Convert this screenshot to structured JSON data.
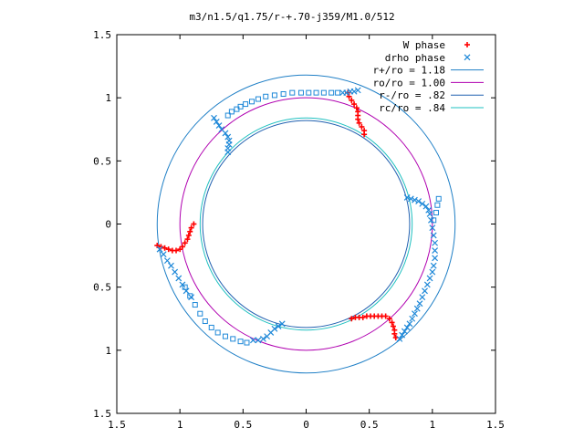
{
  "chart_data": {
    "type": "scatter",
    "title": "m3/n1.5/q1.75/r-+.70-j359/M1.0/512",
    "xlabel": "",
    "ylabel": "",
    "xlim": [
      -1.5,
      1.5
    ],
    "ylim": [
      -1.5,
      1.5
    ],
    "x_ticks": [
      {
        "value": -1.5,
        "label": "1.5"
      },
      {
        "value": -1.0,
        "label": "1"
      },
      {
        "value": -0.5,
        "label": "0.5"
      },
      {
        "value": 0.0,
        "label": "0"
      },
      {
        "value": 0.5,
        "label": "0.5"
      },
      {
        "value": 1.0,
        "label": "1"
      },
      {
        "value": 1.5,
        "label": "1.5"
      }
    ],
    "y_ticks": [
      {
        "value": 1.5,
        "label": "1.5"
      },
      {
        "value": 1.0,
        "label": "1"
      },
      {
        "value": 0.5,
        "label": "0.5"
      },
      {
        "value": 0.0,
        "label": "0"
      },
      {
        "value": -0.5,
        "label": "0.5"
      },
      {
        "value": -1.0,
        "label": "1"
      },
      {
        "value": -1.5,
        "label": "1.5"
      }
    ],
    "grid": false,
    "legend_position": "top-right",
    "series": [
      {
        "name": "W phase",
        "marker": "+",
        "color": "#ff0000",
        "points": [
          [
            0.33,
            1.04
          ],
          [
            0.34,
            1.01
          ],
          [
            0.36,
            0.98
          ],
          [
            0.38,
            0.95
          ],
          [
            0.4,
            0.92
          ],
          [
            0.41,
            0.89
          ],
          [
            0.41,
            0.86
          ],
          [
            0.41,
            0.83
          ],
          [
            0.42,
            0.8
          ],
          [
            0.44,
            0.77
          ],
          [
            0.46,
            0.74
          ],
          [
            0.46,
            0.71
          ],
          [
            -1.18,
            -0.17
          ],
          [
            -1.15,
            -0.18
          ],
          [
            -1.12,
            -0.19
          ],
          [
            -1.09,
            -0.2
          ],
          [
            -1.06,
            -0.21
          ],
          [
            -1.03,
            -0.21
          ],
          [
            -1.0,
            -0.2
          ],
          [
            -0.98,
            -0.18
          ],
          [
            -0.96,
            -0.15
          ],
          [
            -0.94,
            -0.12
          ],
          [
            -0.93,
            -0.09
          ],
          [
            -0.92,
            -0.06
          ],
          [
            -0.91,
            -0.03
          ],
          [
            -0.89,
            0.0
          ],
          [
            0.36,
            -0.75
          ],
          [
            0.39,
            -0.74
          ],
          [
            0.42,
            -0.74
          ],
          [
            0.45,
            -0.74
          ],
          [
            0.48,
            -0.73
          ],
          [
            0.51,
            -0.73
          ],
          [
            0.54,
            -0.73
          ],
          [
            0.57,
            -0.73
          ],
          [
            0.6,
            -0.73
          ],
          [
            0.63,
            -0.73
          ],
          [
            0.66,
            -0.75
          ],
          [
            0.68,
            -0.78
          ],
          [
            0.69,
            -0.81
          ],
          [
            0.7,
            -0.84
          ],
          [
            0.7,
            -0.87
          ],
          [
            0.71,
            -0.9
          ]
        ]
      },
      {
        "name": "drho phase",
        "marker": "x",
        "color": "#1e88d8",
        "points": [
          [
            0.29,
            1.04
          ],
          [
            0.32,
            1.04
          ],
          [
            0.35,
            1.05
          ],
          [
            0.38,
            1.05
          ],
          [
            0.41,
            1.06
          ],
          [
            0.8,
            0.21
          ],
          [
            0.83,
            0.2
          ],
          [
            0.86,
            0.19
          ],
          [
            0.89,
            0.18
          ],
          [
            0.92,
            0.16
          ],
          [
            0.95,
            0.14
          ],
          [
            0.97,
            0.11
          ],
          [
            0.98,
            0.08
          ],
          [
            0.74,
            -0.91
          ],
          [
            0.76,
            -0.88
          ],
          [
            0.78,
            -0.85
          ],
          [
            0.8,
            -0.82
          ],
          [
            0.82,
            -0.79
          ],
          [
            0.84,
            -0.75
          ],
          [
            0.86,
            -0.71
          ],
          [
            0.88,
            -0.67
          ],
          [
            0.9,
            -0.63
          ],
          [
            0.92,
            -0.58
          ],
          [
            0.94,
            -0.53
          ],
          [
            0.96,
            -0.48
          ],
          [
            0.98,
            -0.43
          ],
          [
            1.0,
            -0.38
          ],
          [
            1.01,
            -0.33
          ],
          [
            1.02,
            -0.27
          ],
          [
            1.02,
            -0.21
          ],
          [
            1.02,
            -0.15
          ],
          [
            1.01,
            -0.09
          ],
          [
            1.0,
            -0.03
          ],
          [
            0.99,
            0.03
          ],
          [
            -0.73,
            0.84
          ],
          [
            -0.71,
            0.81
          ],
          [
            -0.69,
            0.78
          ],
          [
            -0.67,
            0.75
          ],
          [
            -0.64,
            0.72
          ],
          [
            -0.62,
            0.69
          ],
          [
            -0.61,
            0.66
          ],
          [
            -0.61,
            0.63
          ],
          [
            -0.62,
            0.6
          ],
          [
            -0.62,
            0.57
          ],
          [
            -1.16,
            -0.2
          ],
          [
            -1.13,
            -0.24
          ],
          [
            -1.1,
            -0.29
          ],
          [
            -1.07,
            -0.33
          ],
          [
            -1.04,
            -0.38
          ],
          [
            -1.01,
            -0.43
          ],
          [
            -0.98,
            -0.48
          ],
          [
            -0.95,
            -0.53
          ],
          [
            -0.91,
            -0.58
          ],
          [
            -0.42,
            -0.92
          ],
          [
            -0.38,
            -0.92
          ],
          [
            -0.34,
            -0.91
          ],
          [
            -0.31,
            -0.89
          ],
          [
            -0.28,
            -0.86
          ],
          [
            -0.25,
            -0.83
          ],
          [
            -0.22,
            -0.81
          ],
          [
            -0.19,
            -0.79
          ]
        ]
      },
      {
        "name": "",
        "marker": "square",
        "color": "#1e88d8",
        "points": [
          [
            -0.62,
            0.86
          ],
          [
            -0.59,
            0.89
          ],
          [
            -0.55,
            0.91
          ],
          [
            -0.52,
            0.93
          ],
          [
            -0.48,
            0.95
          ],
          [
            -0.43,
            0.97
          ],
          [
            -0.38,
            0.99
          ],
          [
            -0.32,
            1.01
          ],
          [
            -0.25,
            1.02
          ],
          [
            -0.18,
            1.03
          ],
          [
            -0.11,
            1.04
          ],
          [
            -0.04,
            1.04
          ],
          [
            0.02,
            1.04
          ],
          [
            0.08,
            1.04
          ],
          [
            0.14,
            1.04
          ],
          [
            0.2,
            1.04
          ],
          [
            0.25,
            1.04
          ],
          [
            1.01,
            0.03
          ],
          [
            1.03,
            0.09
          ],
          [
            1.04,
            0.15
          ],
          [
            1.05,
            0.2
          ],
          [
            -0.96,
            -0.5
          ],
          [
            -0.92,
            -0.57
          ],
          [
            -0.88,
            -0.64
          ],
          [
            -0.84,
            -0.71
          ],
          [
            -0.8,
            -0.77
          ],
          [
            -0.75,
            -0.82
          ],
          [
            -0.7,
            -0.86
          ],
          [
            -0.64,
            -0.89
          ],
          [
            -0.58,
            -0.91
          ],
          [
            -0.52,
            -0.93
          ],
          [
            -0.47,
            -0.94
          ]
        ]
      }
    ],
    "circles": [
      {
        "name": "r+/ro = 1.18",
        "r": 1.18,
        "color": "#1f7fc6"
      },
      {
        "name": "ro/ro = 1.00",
        "r": 1.0,
        "color": "#b000b0"
      },
      {
        "name": "r-/ro = .82",
        "r": 0.82,
        "color": "#2060b0"
      },
      {
        "name": "rc/ro = .84",
        "r": 0.84,
        "color": "#1fc0c0"
      }
    ]
  }
}
